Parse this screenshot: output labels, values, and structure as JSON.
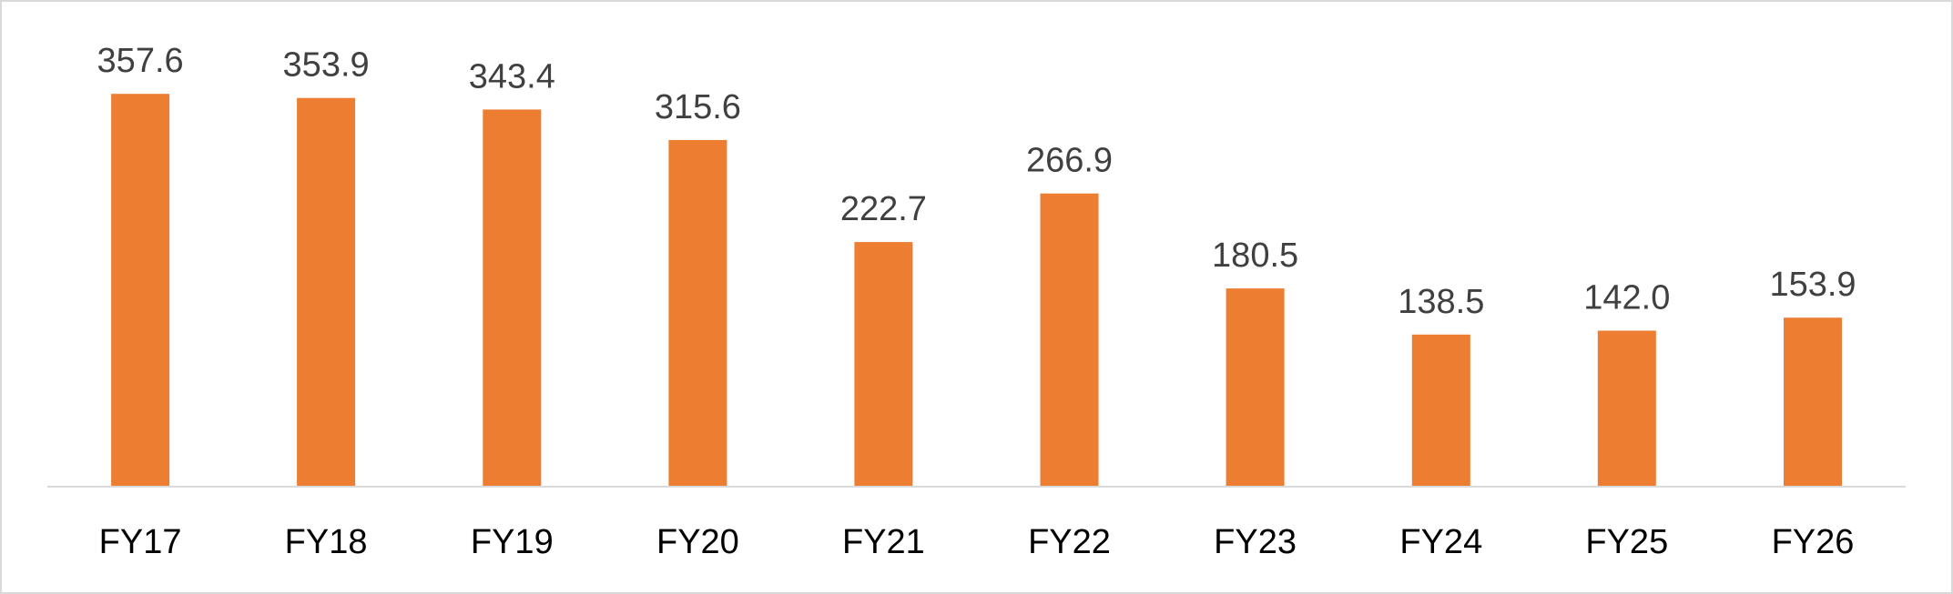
{
  "chart_data": {
    "type": "bar",
    "title": "",
    "xlabel": "",
    "ylabel": "",
    "categories": [
      "FY17",
      "FY18",
      "FY19",
      "FY20",
      "FY21",
      "FY22",
      "FY23",
      "FY24",
      "FY25",
      "FY26"
    ],
    "values": [
      357.6,
      353.9,
      343.4,
      315.6,
      222.7,
      266.9,
      180.5,
      138.5,
      142.0,
      153.9
    ],
    "value_labels": [
      "357.6",
      "353.9",
      "343.4",
      "315.6",
      "222.7",
      "266.9",
      "180.5",
      "138.5",
      "142.0",
      "153.9"
    ],
    "ylim": [
      0,
      400
    ],
    "grid": false,
    "legend": "none",
    "bar_color": "#ED7D31",
    "axis_color": "#D9D9D9",
    "label_color": "#404040"
  }
}
